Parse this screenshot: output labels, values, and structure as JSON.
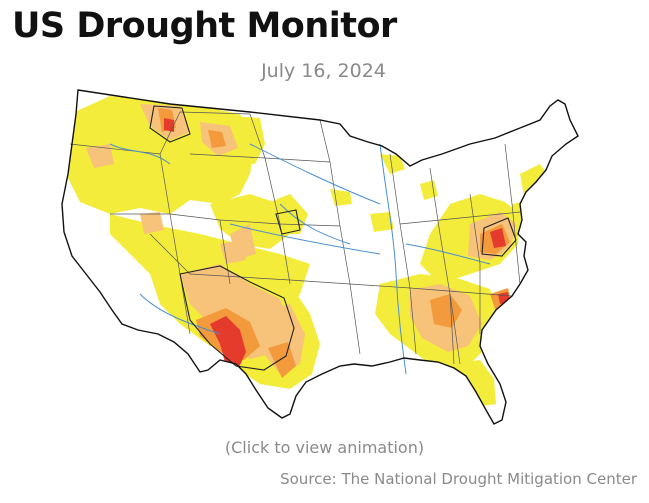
{
  "header": {
    "title": "US Drought Monitor",
    "date": "July 16, 2024"
  },
  "map": {
    "caption": "(Click to view animation)",
    "colors": {
      "abnormally_dry": "#f3ec3a",
      "moderate": "#f7c27a",
      "severe": "#f29a3c",
      "extreme": "#e43b2c",
      "outline": "#222222",
      "rivers": "#4a8fd0",
      "land": "#ffffff"
    }
  },
  "footer": {
    "source": "Source: The National Drought Mitigation Center"
  }
}
